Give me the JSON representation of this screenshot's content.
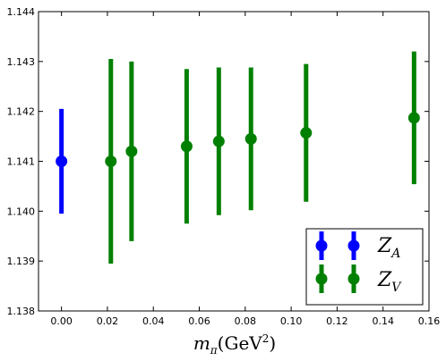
{
  "chart_data": {
    "type": "scatter",
    "xlabel": {
      "base": "m",
      "sub": "π",
      "unit_open": "(GeV",
      "unit_sup": "2",
      "unit_close": ")"
    },
    "ylabel": "",
    "xlim": [
      -0.01,
      0.16
    ],
    "ylim": [
      1.138,
      1.144
    ],
    "x_ticks": [
      0.0,
      0.02,
      0.04,
      0.06,
      0.08,
      0.1,
      0.12,
      0.14,
      0.16
    ],
    "x_tick_labels": [
      "0.00",
      "0.02",
      "0.04",
      "0.06",
      "0.08",
      "0.10",
      "0.12",
      "0.14",
      "0.16"
    ],
    "y_ticks": [
      1.138,
      1.139,
      1.14,
      1.141,
      1.142,
      1.143,
      1.144
    ],
    "y_tick_labels": [
      "1.138",
      "1.139",
      "1.140",
      "1.141",
      "1.142",
      "1.143",
      "1.144"
    ],
    "grid": false,
    "legend_position": "lower-right",
    "series": [
      {
        "name": "Z_A",
        "label_main": "Z",
        "label_sub": "A",
        "color": "#0000ff",
        "points": [
          {
            "x": 0.0,
            "y": 1.141,
            "err": 0.00105
          }
        ]
      },
      {
        "name": "Z_V",
        "label_main": "Z",
        "label_sub": "V",
        "color": "#008000",
        "points": [
          {
            "x": 0.0215,
            "y": 1.141,
            "err": 0.00205
          },
          {
            "x": 0.0305,
            "y": 1.1412,
            "err": 0.0018
          },
          {
            "x": 0.0545,
            "y": 1.1413,
            "err": 0.00155
          },
          {
            "x": 0.0685,
            "y": 1.1414,
            "err": 0.00148
          },
          {
            "x": 0.0825,
            "y": 1.14145,
            "err": 0.00143
          },
          {
            "x": 0.1065,
            "y": 1.14157,
            "err": 0.00138
          },
          {
            "x": 0.1535,
            "y": 1.14187,
            "err": 0.00133
          }
        ]
      }
    ]
  }
}
